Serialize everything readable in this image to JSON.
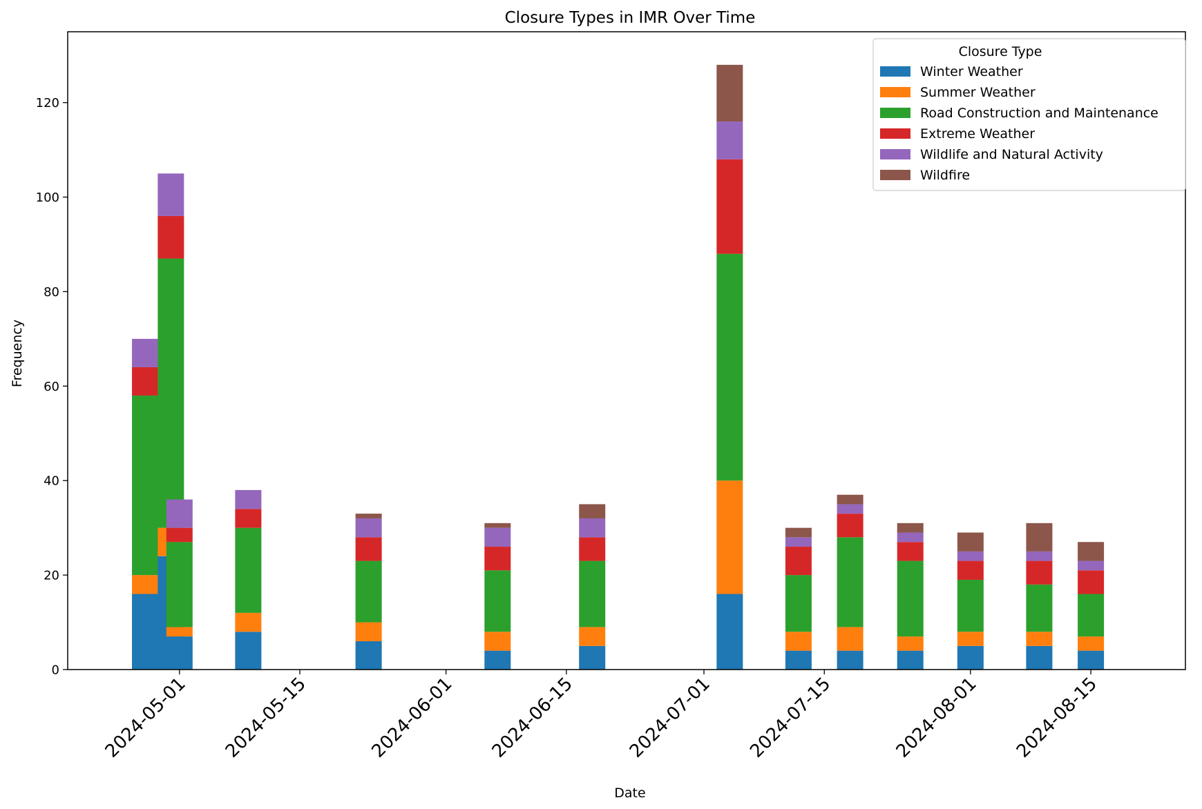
{
  "chart_data": {
    "type": "bar",
    "stacked": true,
    "title": "Closure Types in IMR Over Time",
    "xlabel": "Date",
    "ylabel": "Frequency",
    "ylim": [
      0,
      135
    ],
    "xlim": [
      "2024-04-18",
      "2024-08-26"
    ],
    "yticks": [
      0,
      20,
      40,
      60,
      80,
      100,
      120
    ],
    "xticks": [
      "2024-05-01",
      "2024-05-15",
      "2024-06-01",
      "2024-06-15",
      "2024-07-01",
      "2024-07-15",
      "2024-08-01",
      "2024-08-15"
    ],
    "legend": {
      "title": "Closure Type",
      "placement": "top-right"
    },
    "x": [
      "2024-04-27",
      "2024-04-30",
      "2024-05-01",
      "2024-05-09",
      "2024-05-23",
      "2024-06-07",
      "2024-06-18",
      "2024-07-04",
      "2024-07-12",
      "2024-07-18",
      "2024-07-25",
      "2024-08-01",
      "2024-08-09",
      "2024-08-15"
    ],
    "series": [
      {
        "name": "Winter Weather",
        "color": "#1f77b4",
        "values": [
          16,
          24,
          7,
          8,
          6,
          4,
          5,
          16,
          4,
          4,
          4,
          5,
          5,
          4
        ]
      },
      {
        "name": "Summer Weather",
        "color": "#ff7f0e",
        "values": [
          4,
          6,
          2,
          4,
          4,
          4,
          4,
          24,
          4,
          5,
          3,
          3,
          3,
          3
        ]
      },
      {
        "name": "Road Construction and Maintenance",
        "color": "#2ca02c",
        "values": [
          38,
          57,
          18,
          18,
          13,
          13,
          14,
          48,
          12,
          19,
          16,
          11,
          10,
          9
        ]
      },
      {
        "name": "Extreme Weather",
        "color": "#d62728",
        "values": [
          6,
          9,
          3,
          4,
          5,
          5,
          5,
          20,
          6,
          5,
          4,
          4,
          5,
          5
        ]
      },
      {
        "name": "Wildlife and Natural Activity",
        "color": "#9467bd",
        "values": [
          6,
          9,
          6,
          4,
          4,
          4,
          4,
          8,
          2,
          2,
          2,
          2,
          2,
          2
        ]
      },
      {
        "name": "Wildfire",
        "color": "#8c564b",
        "values": [
          0,
          0,
          0,
          0,
          1,
          1,
          3,
          12,
          2,
          2,
          2,
          4,
          6,
          4
        ]
      }
    ]
  }
}
